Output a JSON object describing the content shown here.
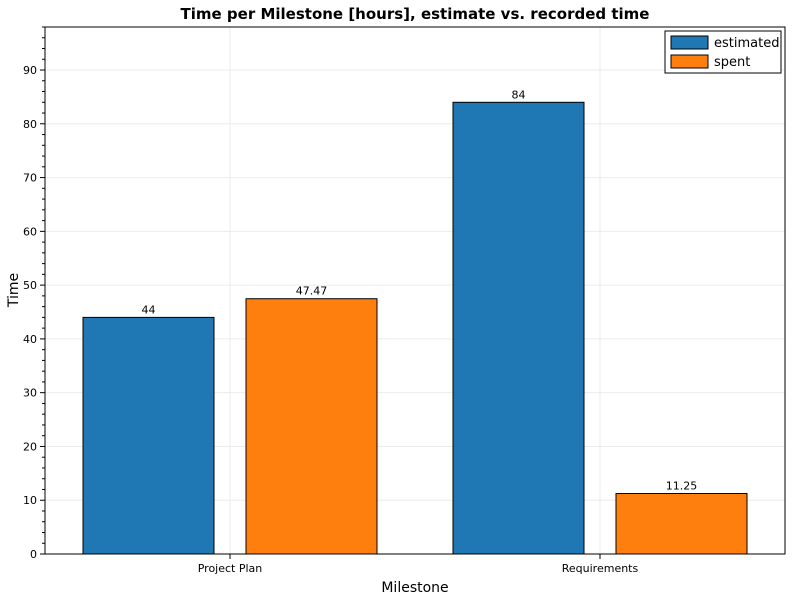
{
  "chart_data": {
    "type": "bar",
    "title": "Time per Milestone [hours], estimate vs. recorded time",
    "xlabel": "Milestone",
    "ylabel": "Time",
    "categories": [
      "Project Plan",
      "Requirements"
    ],
    "series": [
      {
        "name": "estimated",
        "values": [
          44,
          84
        ],
        "labels": [
          "44",
          "84"
        ],
        "color": "#1f77b4"
      },
      {
        "name": "spent",
        "values": [
          47.47,
          11.25
        ],
        "labels": [
          "47.47",
          "11.25"
        ],
        "color": "#ff7f0e"
      }
    ],
    "ylim": [
      0,
      98
    ],
    "yticks": [
      0,
      10,
      20,
      30,
      40,
      50,
      60,
      70,
      80,
      90
    ],
    "grid": true,
    "legend_position": "top-right"
  }
}
